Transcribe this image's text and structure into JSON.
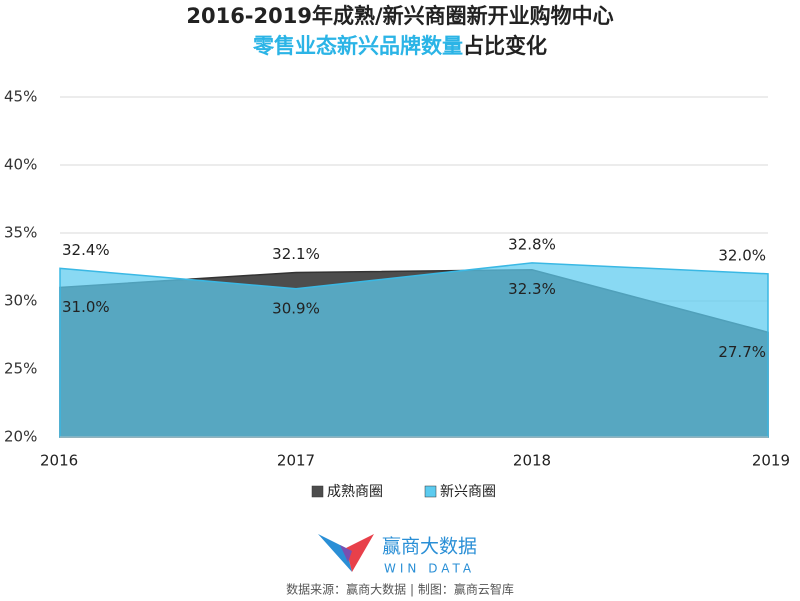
{
  "chart_data": {
    "type": "area",
    "title": "2016-2019年成熟/新兴商圈新开业购物中心",
    "subtitle_highlight": "零售业态新兴品牌数量",
    "subtitle_rest": "占比变化",
    "categories": [
      "2016",
      "2017",
      "2018",
      "2019"
    ],
    "series": [
      {
        "name": "成熟商圈",
        "color": "#4d4d4d",
        "values": [
          31.0,
          32.1,
          32.3,
          27.7
        ],
        "value_labels": [
          "31.0%",
          "32.1%",
          "32.3%",
          "27.7%"
        ]
      },
      {
        "name": "新兴商圈",
        "color": "#5ccbef",
        "values": [
          32.4,
          30.9,
          32.8,
          32.0
        ],
        "value_labels": [
          "32.4%",
          "30.9%",
          "32.8%",
          "32.0%"
        ]
      }
    ],
    "ylim": [
      20,
      45
    ],
    "yticks": [
      {
        "value": 20,
        "label": "20%"
      },
      {
        "value": 25,
        "label": "25%"
      },
      {
        "value": 30,
        "label": "30%"
      },
      {
        "value": 35,
        "label": "35%"
      },
      {
        "value": 40,
        "label": "40%"
      },
      {
        "value": 45,
        "label": "45%"
      }
    ],
    "grid": true,
    "legend": "bottom",
    "logo_name": "赢商大数据",
    "logo_sub": "WIN DATA",
    "source": "数据来源：赢商大数据 | 制图：赢商云智库"
  }
}
